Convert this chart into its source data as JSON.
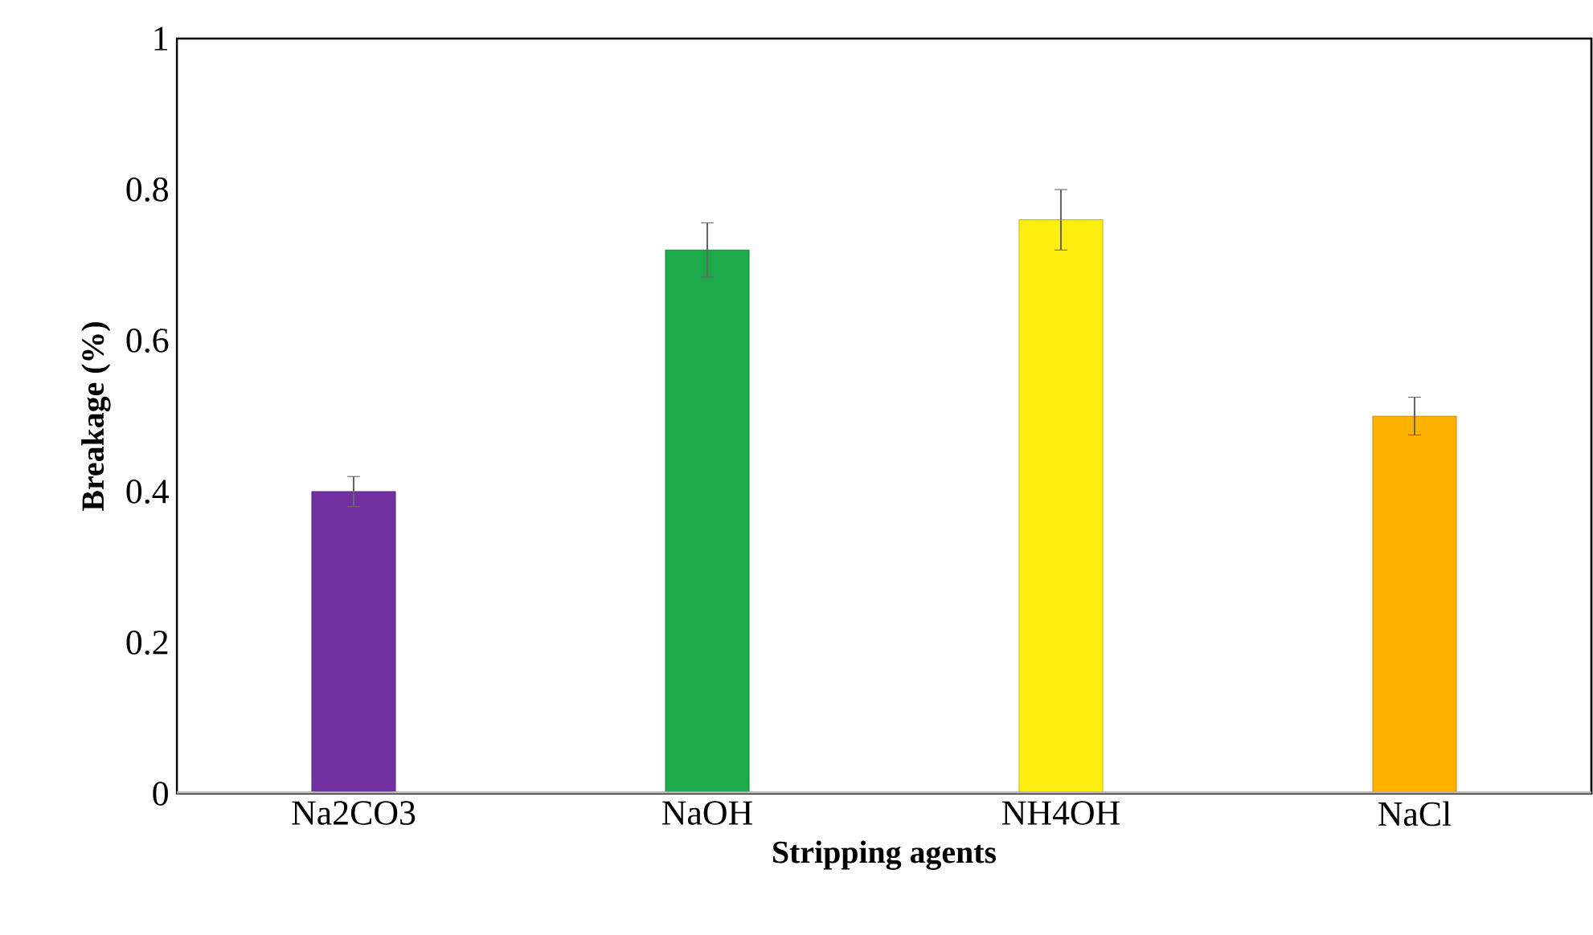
{
  "chart_data": {
    "type": "bar",
    "xlabel": "Stripping agents",
    "ylabel": "Breakage (%)",
    "categories": [
      "Na2CO3",
      "NaOH",
      "NH4OH",
      "NaCl"
    ],
    "values": [
      0.4,
      0.72,
      0.76,
      0.5
    ],
    "errors": [
      0.02,
      0.036,
      0.04,
      0.025
    ],
    "colors": [
      "#7030a0",
      "#1caa4a",
      "#ffee10",
      "#ffb300"
    ],
    "ylim": [
      0,
      1
    ],
    "yticks": [
      0,
      0.2,
      0.4,
      0.6,
      0.8,
      1
    ]
  }
}
